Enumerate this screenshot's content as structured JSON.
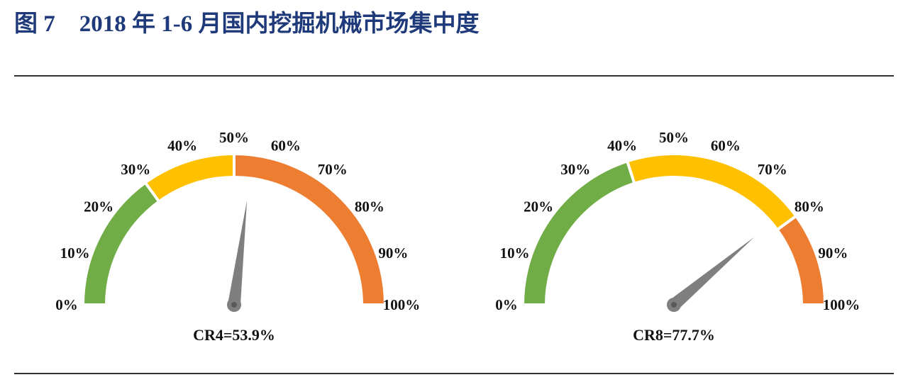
{
  "figure": {
    "label": "图 7",
    "title": "2018 年 1-6 月国内挖掘机械市场集中度"
  },
  "chart_data": [
    {
      "type": "gauge",
      "min": 0,
      "max": 100,
      "ticks": [
        "0%",
        "10%",
        "20%",
        "30%",
        "40%",
        "50%",
        "60%",
        "70%",
        "80%",
        "90%",
        "100%"
      ],
      "bands": [
        {
          "from": 0,
          "to": 30,
          "color": "#70ad47"
        },
        {
          "from": 30,
          "to": 50,
          "color": "#ffc000"
        },
        {
          "from": 50,
          "to": 100,
          "color": "#ed7d31"
        }
      ],
      "value": 53.9,
      "label": "CR4=53.9%"
    },
    {
      "type": "gauge",
      "min": 0,
      "max": 100,
      "ticks": [
        "0%",
        "10%",
        "20%",
        "30%",
        "40%",
        "50%",
        "60%",
        "70%",
        "80%",
        "90%",
        "100%"
      ],
      "bands": [
        {
          "from": 0,
          "to": 40,
          "color": "#70ad47"
        },
        {
          "from": 40,
          "to": 80,
          "color": "#ffc000"
        },
        {
          "from": 80,
          "to": 100,
          "color": "#ed7d31"
        }
      ],
      "value": 77.7,
      "label": "CR8=77.7%"
    }
  ],
  "colors": {
    "title": "#1f3a7a",
    "needle": "#7f7f7f",
    "hub": "#595959"
  }
}
